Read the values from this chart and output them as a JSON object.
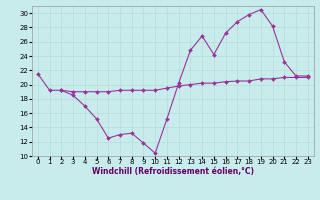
{
  "xlabel": "Windchill (Refroidissement éolien,°C)",
  "bg_color": "#c8ecec",
  "grid_color": "#b8dede",
  "line_color": "#993399",
  "xlim": [
    -0.5,
    23.5
  ],
  "ylim": [
    10,
    31
  ],
  "xticks": [
    0,
    1,
    2,
    3,
    4,
    5,
    6,
    7,
    8,
    9,
    10,
    11,
    12,
    13,
    14,
    15,
    16,
    17,
    18,
    19,
    20,
    21,
    22,
    23
  ],
  "yticks": [
    10,
    12,
    14,
    16,
    18,
    20,
    22,
    24,
    26,
    28,
    30
  ],
  "line1_x": [
    0,
    1,
    2,
    3,
    4,
    5,
    6,
    7,
    8,
    9,
    10,
    11,
    12,
    13,
    14,
    15,
    16,
    17,
    18,
    19,
    20,
    21,
    22,
    23
  ],
  "line1_y": [
    21.5,
    19.2,
    19.2,
    18.5,
    17.0,
    15.2,
    12.5,
    13.0,
    13.2,
    11.8,
    10.4,
    15.2,
    20.2,
    24.8,
    26.8,
    24.2,
    27.2,
    28.8,
    29.8,
    30.5,
    28.2,
    23.2,
    21.2,
    21.2
  ],
  "line2_x": [
    2,
    3,
    4,
    5,
    6,
    7,
    8,
    9,
    10,
    11,
    12,
    13,
    14,
    15,
    16,
    17,
    18,
    19,
    20,
    21,
    22,
    23
  ],
  "line2_y": [
    19.2,
    19.0,
    19.0,
    19.0,
    19.0,
    19.2,
    19.2,
    19.2,
    19.2,
    19.5,
    19.8,
    20.0,
    20.2,
    20.2,
    20.4,
    20.5,
    20.5,
    20.8,
    20.8,
    21.0,
    21.0,
    21.0
  ],
  "tick_fontsize": 5.0,
  "xlabel_fontsize": 5.5,
  "xlabel_color": "#660066",
  "spine_color": "#999999"
}
